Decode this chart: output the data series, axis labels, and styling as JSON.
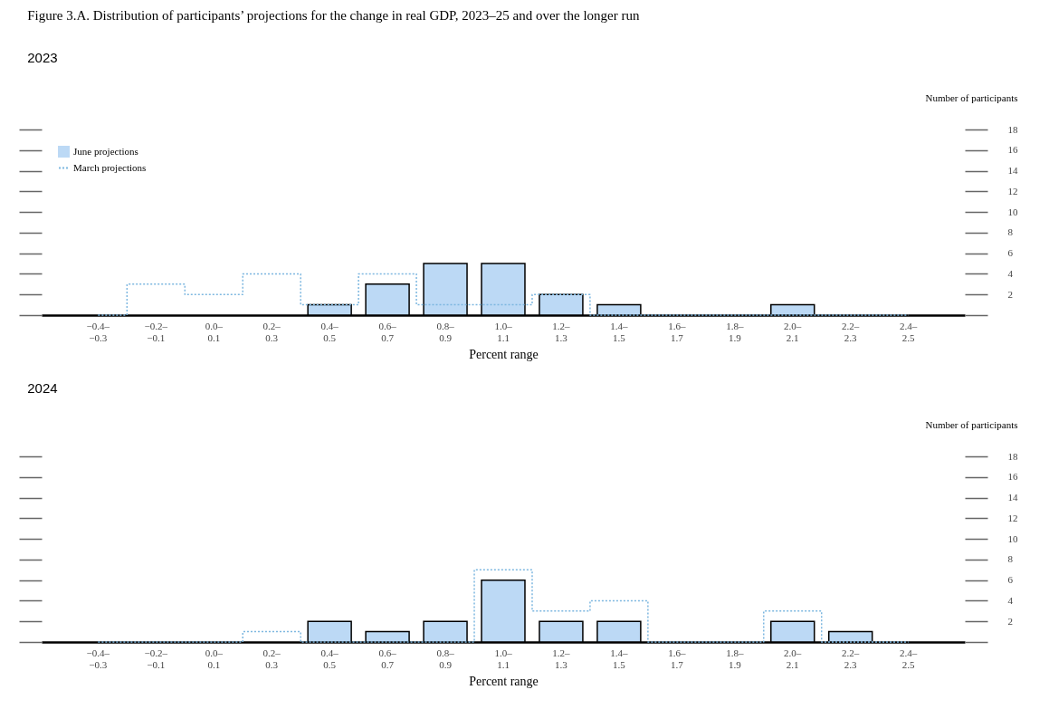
{
  "chart_data": [
    {
      "type": "bar",
      "title": "Figure 3.A. Distribution of participants’ projections for the change in real GDP, 2023–25 and over the longer run",
      "subtitle": "2023",
      "xlabel": "Percent range",
      "ylabel": "Number of participants",
      "categories": [
        "−0.4–−0.3",
        "−0.2–−0.1",
        "0.0–0.1",
        "0.2–0.3",
        "0.4–0.5",
        "0.6–0.7",
        "0.8–0.9",
        "1.0–1.1",
        "1.2–1.3",
        "1.4–1.5",
        "1.6–1.7",
        "1.8–1.9",
        "2.0–2.1",
        "2.2–2.3",
        "2.4–2.5"
      ],
      "series": [
        {
          "name": "June projections",
          "color": "#bcd9f5",
          "values": [
            0,
            0,
            0,
            0,
            1,
            3,
            5,
            5,
            2,
            1,
            0,
            0,
            1,
            0,
            0
          ]
        },
        {
          "name": "March projections",
          "type": "step",
          "color": "#7db7e0",
          "line_style": "dotted",
          "values": [
            0,
            3,
            2,
            4,
            1,
            4,
            1,
            1,
            2,
            0,
            0,
            0,
            0,
            0,
            0
          ]
        }
      ],
      "ylim": [
        0,
        18
      ],
      "yticks": [
        {
          "value": 0,
          "label": null
        },
        2,
        4,
        6,
        8,
        10,
        12,
        14,
        16,
        18
      ],
      "grid": false,
      "legend": "top left"
    },
    {
      "type": "bar",
      "title": "2024",
      "xlabel": "Percent range",
      "ylabel": "Number of participants",
      "categories": [
        "−0.4–−0.3",
        "−0.2–−0.1",
        "0.0–0.1",
        "0.2–0.3",
        "0.4–0.5",
        "0.6–0.7",
        "0.8–0.9",
        "1.0–1.1",
        "1.2–1.3",
        "1.4–1.5",
        "1.6–1.7",
        "1.8–1.9",
        "2.0–2.1",
        "2.2–2.3",
        "2.4–2.5"
      ],
      "series": [
        {
          "color": "#bcd9f5",
          "values": [
            0,
            0,
            0,
            0,
            2,
            1,
            2,
            6,
            2,
            2,
            0,
            0,
            2,
            1,
            0
          ]
        },
        {
          "type": "step",
          "color": "#7db7e0",
          "line_style": "dotted",
          "values": [
            0,
            0,
            0,
            1,
            0,
            0,
            0,
            7,
            3,
            4,
            0,
            0,
            3,
            0,
            0
          ]
        }
      ],
      "ylim": [
        0,
        18
      ],
      "yticks": [
        {
          "value": 0,
          "label": null
        },
        2,
        4,
        6,
        8,
        10,
        12,
        14,
        16,
        18
      ],
      "grid": false,
      "legend": false
    }
  ]
}
